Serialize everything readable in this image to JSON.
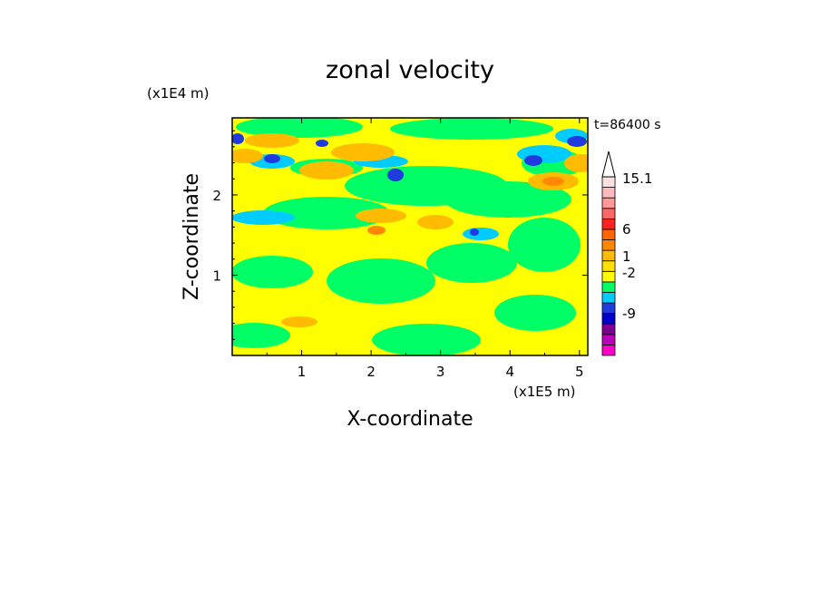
{
  "chart_data": {
    "type": "heatmap",
    "title": "zonal velocity",
    "xlabel": "X-coordinate",
    "ylabel": "Z-coordinate",
    "x_unit": "(x1E5 m)",
    "y_unit": "(x1E4 m)",
    "time_label": "t=86400 s",
    "xlim": [
      0,
      5.12
    ],
    "ylim": [
      0,
      2.96
    ],
    "x_ticks": [
      "1",
      "2",
      "3",
      "4",
      "5"
    ],
    "y_ticks": [
      "1",
      "2"
    ],
    "x_tick_values": [
      1,
      2,
      3,
      4,
      5
    ],
    "y_tick_values": [
      1,
      2
    ],
    "colorbar": {
      "tick_labels": [
        "15.1",
        "6",
        "1",
        "-2",
        "-9"
      ],
      "colors": [
        "#ff00cc",
        "#bb00bb",
        "#7f0090",
        "#0000cc",
        "#1f3bdf",
        "#00ccff",
        "#00ff66",
        "#ffff00",
        "#ffe000",
        "#ffbb00",
        "#ff8800",
        "#ff6600",
        "#ff2222",
        "#ff6666",
        "#ff9999",
        "#ffbbbb",
        "#ffe0e0"
      ]
    }
  }
}
